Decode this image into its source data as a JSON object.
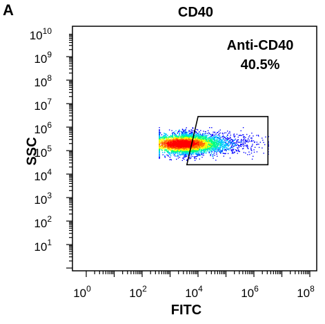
{
  "panel_label": "A",
  "chart_data": {
    "type": "scatter",
    "title": "CD40",
    "xlabel": "FITC",
    "ylabel": "SSC",
    "x_scale": "log",
    "y_scale": "log",
    "xlim": [
      1,
      100000000
    ],
    "ylim": [
      1,
      10000000000
    ],
    "x_ticks": [
      {
        "value": 1,
        "label": "10",
        "exp": "0"
      },
      {
        "value": 100,
        "label": "10",
        "exp": "2"
      },
      {
        "value": 10000,
        "label": "10",
        "exp": "4"
      },
      {
        "value": 1000000,
        "label": "10",
        "exp": "6"
      },
      {
        "value": 100000000,
        "label": "10",
        "exp": "8"
      }
    ],
    "y_ticks": [
      {
        "value": 10,
        "label": "10",
        "exp": "1"
      },
      {
        "value": 100,
        "label": "10",
        "exp": "2"
      },
      {
        "value": 1000,
        "label": "10",
        "exp": "3"
      },
      {
        "value": 10000,
        "label": "10",
        "exp": "4"
      },
      {
        "value": 100000,
        "label": "10",
        "exp": "5"
      },
      {
        "value": 1000000,
        "label": "10",
        "exp": "6"
      },
      {
        "value": 10000000,
        "label": "10",
        "exp": "7"
      },
      {
        "value": 100000000,
        "label": "10",
        "exp": "8"
      },
      {
        "value": 1000000000,
        "label": "10",
        "exp": "9"
      },
      {
        "value": 10000000000,
        "label": "10",
        "exp": "10"
      }
    ],
    "population": {
      "x_log_center": 3.4,
      "x_log_range": [
        2.6,
        6.5
      ],
      "y_log_center": 5.3,
      "y_log_range": [
        4.6,
        6.0
      ],
      "density_colors": [
        "#0000ff",
        "#00c8ff",
        "#00ff80",
        "#ffff00",
        "#ff6a00",
        "#ff0000"
      ]
    },
    "gate": {
      "name": "Anti-CD40",
      "percent": "40.5%",
      "vertices_log": [
        [
          4.0,
          6.45
        ],
        [
          6.5,
          6.45
        ],
        [
          6.5,
          4.4
        ],
        [
          3.6,
          4.4
        ]
      ],
      "color": "#000000"
    },
    "grid": false
  }
}
